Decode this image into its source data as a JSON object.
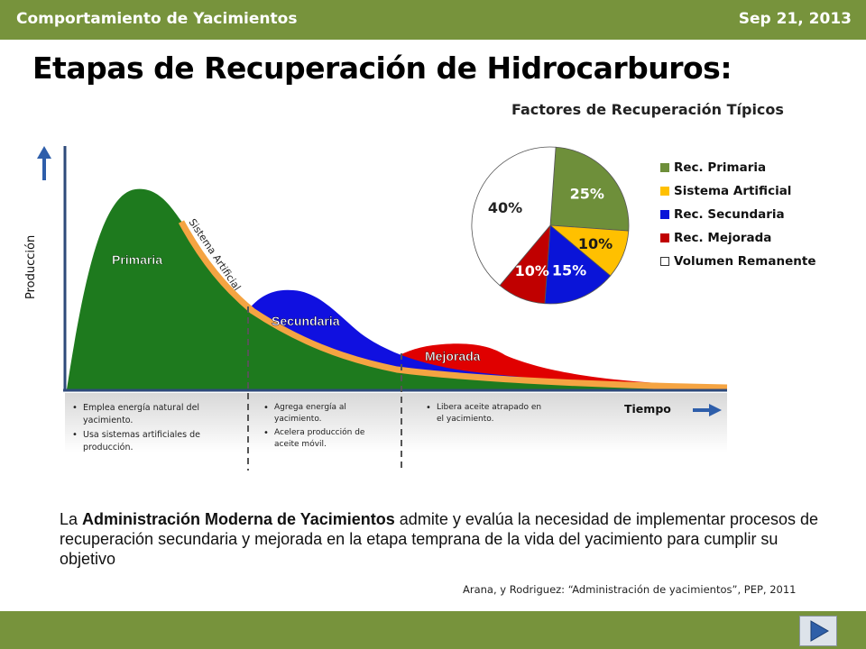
{
  "header": {
    "left": "Comportamiento de Yacimientos",
    "right": "Sep 21, 2013"
  },
  "title": "Etapas de Recuperación de Hidrocarburos:",
  "diagram": {
    "ylabel": "Producción",
    "xlabel": "Tiempo",
    "stages": {
      "primaria": "Primaria",
      "sistema": "Sistema Artificial",
      "secundaria": "Secundaria",
      "mejorada": "Mejorada"
    },
    "bullets": {
      "primaria": [
        "Emplea energía natural del yacimiento.",
        "Usa sistemas artificiales de producción."
      ],
      "secundaria": [
        "Agrega energía al yacimiento.",
        "Acelera producción de aceite móvil."
      ],
      "mejorada": [
        "Libera aceite atrapado en el yacimiento."
      ]
    },
    "colors": {
      "primaria": "#1e7a1e",
      "sistema": "#f5a442",
      "secundaria": "#1010e0",
      "mejorada": "#e00000"
    }
  },
  "chart_data": {
    "type": "pie",
    "title": "Factores de Recuperación Típicos",
    "slices": [
      {
        "name": "Rec. Primaria",
        "value": 25,
        "label": "25%",
        "color": "#6e8f3a"
      },
      {
        "name": "Sistema Artificial",
        "value": 10,
        "label": "10%",
        "color": "#ffc000"
      },
      {
        "name": "Rec. Secundaria",
        "value": 15,
        "label": "15%",
        "color": "#0a14d8"
      },
      {
        "name": "Rec. Mejorada",
        "value": 10,
        "label": "10%",
        "color": "#c00000"
      },
      {
        "name": "Volumen Remanente",
        "value": 40,
        "label": "40%",
        "color": "#ffffff"
      }
    ],
    "legend_position": "right"
  },
  "body": {
    "bold": "Administración Moderna de Yacimientos",
    "pre": "La ",
    "post": " admite y evalúa la necesidad de implementar procesos de recuperación secundaria y mejorada en la etapa temprana de la vida del yacimiento para cumplir su objetivo"
  },
  "citation": "Arana, y Rodriguez: “Administración de yacimientos”, PEP, 2011"
}
